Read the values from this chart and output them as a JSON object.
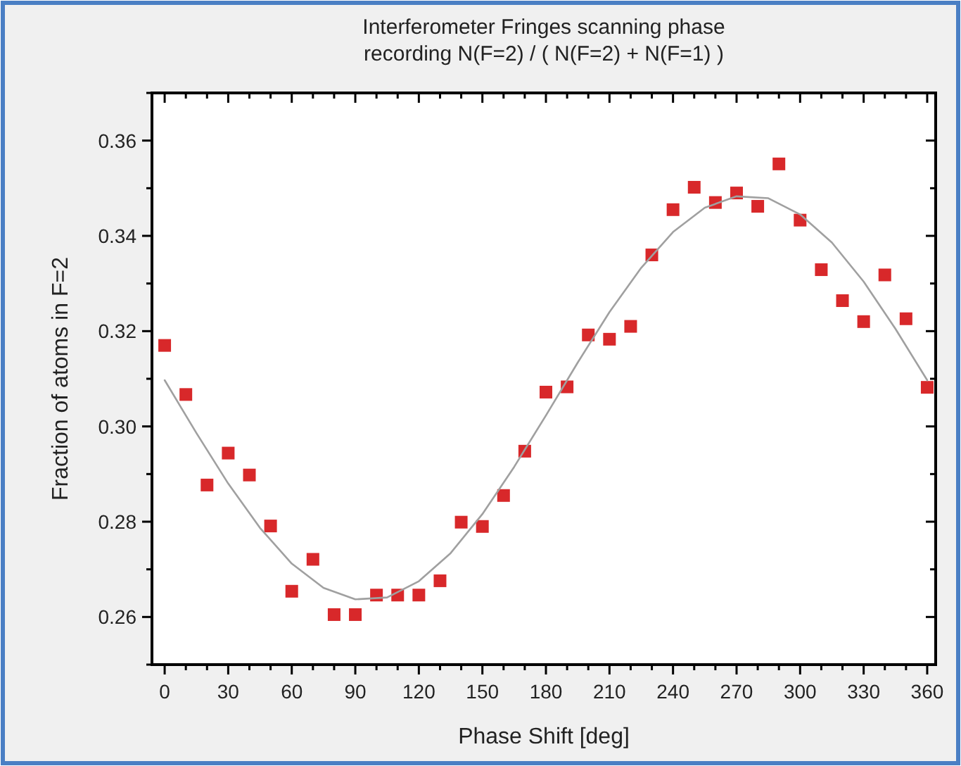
{
  "chart_data": {
    "type": "scatter",
    "title": "Interferometer Fringes scanning phase",
    "subtitle": "recording N(F=2) / ( N(F=2) + N(F=1) )",
    "xlabel": "Phase Shift [deg]",
    "ylabel": "Fraction of atoms in F=2",
    "x": [
      0,
      10,
      20,
      30,
      40,
      50,
      60,
      70,
      80,
      90,
      100,
      110,
      120,
      130,
      140,
      150,
      160,
      170,
      180,
      190,
      200,
      210,
      220,
      230,
      240,
      250,
      260,
      270,
      280,
      290,
      300,
      310,
      320,
      330,
      340,
      350,
      360
    ],
    "series": [
      {
        "color": "#d8282a",
        "marker": "square",
        "values": [
          0.317,
          0.3067,
          0.2877,
          0.2944,
          0.2898,
          0.2791,
          0.2654,
          0.2721,
          0.2605,
          0.2605,
          0.2646,
          0.2646,
          0.2646,
          0.2676,
          0.2799,
          0.279,
          0.2855,
          0.2948,
          0.3072,
          0.3083,
          0.3192,
          0.3183,
          0.321,
          0.336,
          0.3455,
          0.3502,
          0.347,
          0.349,
          0.3462,
          0.3551,
          0.3433,
          0.3329,
          0.3264,
          0.322,
          0.3318,
          0.3226,
          0.3082
        ]
      },
      {
        "type": "line",
        "color": "#a0a0a0",
        "marker": "none",
        "line_style": "solid",
        "x": [
          0,
          15,
          30,
          45,
          60,
          75,
          90,
          105,
          120,
          135,
          150,
          165,
          180,
          195,
          210,
          225,
          240,
          255,
          270,
          285,
          300,
          315,
          330,
          345,
          360
        ],
        "values": [
          0.3097,
          0.2986,
          0.288,
          0.2787,
          0.2712,
          0.2661,
          0.2637,
          0.2641,
          0.2675,
          0.2734,
          0.2816,
          0.2915,
          0.3023,
          0.3134,
          0.324,
          0.3333,
          0.3408,
          0.3459,
          0.3483,
          0.3479,
          0.3445,
          0.3386,
          0.3304,
          0.3205,
          0.3097
        ]
      }
    ],
    "xlim": [
      -6,
      364
    ],
    "xticks": [
      0,
      {
        "value": 10,
        "label": null
      },
      {
        "value": 20,
        "label": null
      },
      30,
      {
        "value": 40,
        "label": null
      },
      {
        "value": 50,
        "label": null
      },
      60,
      {
        "value": 70,
        "label": null
      },
      {
        "value": 80,
        "label": null
      },
      90,
      {
        "value": 100,
        "label": null
      },
      {
        "value": 110,
        "label": null
      },
      120,
      {
        "value": 130,
        "label": null
      },
      {
        "value": 140,
        "label": null
      },
      150,
      {
        "value": 160,
        "label": null
      },
      {
        "value": 170,
        "label": null
      },
      180,
      {
        "value": 190,
        "label": null
      },
      {
        "value": 200,
        "label": null
      },
      210,
      {
        "value": 220,
        "label": null
      },
      {
        "value": 230,
        "label": null
      },
      240,
      {
        "value": 250,
        "label": null
      },
      {
        "value": 260,
        "label": null
      },
      270,
      {
        "value": 280,
        "label": null
      },
      {
        "value": 290,
        "label": null
      },
      300,
      {
        "value": 310,
        "label": null
      },
      {
        "value": 320,
        "label": null
      },
      330,
      {
        "value": 340,
        "label": null
      },
      {
        "value": 350,
        "label": null
      },
      360
    ],
    "ylim": [
      0.25,
      0.37
    ],
    "yticks": [
      {
        "value": 0.25,
        "label": null
      },
      0.26,
      {
        "value": 0.27,
        "label": null
      },
      0.28,
      {
        "value": 0.29,
        "label": null
      },
      {
        "value": 0.3,
        "label": "0.30"
      },
      {
        "value": 0.31,
        "label": null
      },
      0.32,
      {
        "value": 0.33,
        "label": null
      },
      0.34,
      {
        "value": 0.35,
        "label": null
      },
      0.36,
      {
        "value": 0.37,
        "label": null
      }
    ],
    "grid": false
  }
}
